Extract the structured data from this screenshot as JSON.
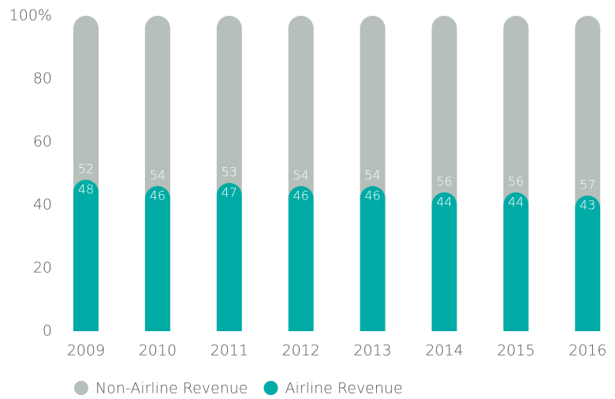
{
  "chart_data": {
    "type": "stacked_bar",
    "categories": [
      "2009",
      "2010",
      "2011",
      "2012",
      "2013",
      "2014",
      "2015",
      "2016"
    ],
    "series": [
      {
        "name": "Non-Airline Revenue",
        "color": "#b6bfba",
        "values": [
          52,
          54,
          53,
          54,
          54,
          56,
          56,
          57
        ]
      },
      {
        "name": "Airline Revenue",
        "color": "#00aba5",
        "values": [
          48,
          46,
          47,
          46,
          46,
          44,
          44,
          43
        ]
      }
    ],
    "ylim": [
      0,
      100
    ],
    "yticks": [
      0,
      20,
      40,
      60,
      80,
      {
        "value": 100,
        "label": "100%"
      }
    ],
    "legend": "bottom-left"
  }
}
